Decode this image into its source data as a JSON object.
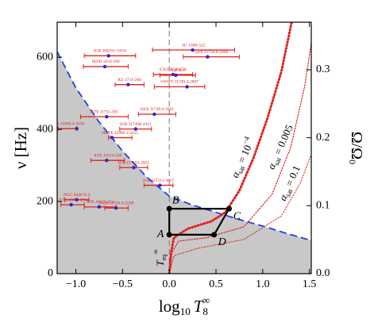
{
  "chart_data": {
    "type": "scatter",
    "x_label": {
      "base": "log",
      "base_sub": "10",
      "var": "T",
      "var_sub": "8",
      "var_sup": "∞"
    },
    "y_label": "ν [Hz]",
    "y2_label": {
      "main": "Ω/Ω",
      "sub": "0"
    },
    "xlim": [
      -1.2,
      1.52
    ],
    "ylim": [
      0,
      697
    ],
    "y2lim": [
      0,
      0.37
    ],
    "xticks": [
      {
        "value": -1,
        "label": "−1.0"
      },
      {
        "value": -0.5,
        "label": "−0.5"
      },
      {
        "value": 0,
        "label": "0.0"
      },
      0.5,
      {
        "value": 1,
        "label": "1.0"
      },
      1.5
    ],
    "yticks": [
      0,
      200,
      400,
      600
    ],
    "y2ticks": [
      {
        "value": 0,
        "label": "0.0"
      },
      0.1,
      0.2,
      0.3
    ],
    "source_color": "#e0201b",
    "point_color": "#1f2bd6",
    "sources": [
      {
        "name": "4U 1608-522",
        "x": 0.25,
        "xlo": -0.18,
        "xhi": 0.7,
        "y": 620
      },
      {
        "name": "IGR J00291+5934",
        "x": -0.65,
        "xlo": -0.91,
        "xhi": -0.36,
        "y": 604
      },
      {
        "name": "MXB 1659-298",
        "x": -0.69,
        "xlo": -0.92,
        "xhi": -0.44,
        "y": 574
      },
      {
        "name": "SAX J1750.8-2900",
        "x": 0.41,
        "xlo": 0.15,
        "xhi": 0.75,
        "y": 601
      },
      {
        "name": "EXO 0748-676",
        "x": 0.04,
        "xlo": -0.17,
        "xhi": 0.25,
        "y": 552
      },
      {
        "name": "KS 1731-260",
        "x": -0.44,
        "xlo": -0.58,
        "xhi": -0.27,
        "y": 524
      },
      {
        "name": "Aql X-1",
        "x": 0.07,
        "xlo": -0.1,
        "xhi": 0.28,
        "y": 550
      },
      {
        "name": "SWIFT J1749.4-2807",
        "x": 0.19,
        "xlo": -0.16,
        "xhi": 0.38,
        "y": 518
      },
      {
        "name": "XTE J1751-305",
        "x": -0.67,
        "xlo": -0.95,
        "xhi": -0.44,
        "y": 435
      },
      {
        "name": "SAX J1748.9-2021",
        "x": -0.16,
        "xlo": -0.33,
        "xhi": 0.07,
        "y": 442
      },
      {
        "name": "SAX J1808.4-3658",
        "x": -0.99,
        "xlo": -1.19,
        "xhi": -0.99,
        "y": 402
      },
      {
        "name": "IGR J17498-2921",
        "x": -0.36,
        "xlo": -0.53,
        "xhi": -0.19,
        "y": 401
      },
      {
        "name": "HETE J1900.1-2455",
        "x": -0.61,
        "xlo": -0.65,
        "xhi": -0.4,
        "y": 377
      },
      {
        "name": "XTE J1814-338",
        "x": -0.67,
        "xlo": -0.84,
        "xhi": -0.48,
        "y": 314
      },
      {
        "name": "IGR J17191-2821",
        "x": -0.38,
        "xlo": -0.53,
        "xhi": -0.23,
        "y": 294
      },
      {
        "name": "IGR J17511-3057",
        "x": -0.1,
        "xlo": -0.27,
        "xhi": 0.04,
        "y": 245
      },
      {
        "name": "NGC 6440 X-2",
        "x": -0.99,
        "xlo": -1.12,
        "xhi": -0.86,
        "y": 205
      },
      {
        "name": "XTE J1807-294",
        "x": -1.05,
        "xlo": -1.16,
        "xhi": -0.91,
        "y": 191
      },
      {
        "name": "XTE J0929-314",
        "x": -0.75,
        "xlo": -0.91,
        "xhi": -0.57,
        "y": 185
      },
      {
        "name": "Swift J1756.9-2508",
        "x": -0.57,
        "xlo": -0.69,
        "xhi": -0.44,
        "y": 182
      }
    ],
    "boundary": {
      "color": "#2040e0",
      "fill": "#c8c8c8",
      "x": [
        -1.2,
        -1.0,
        -0.75,
        -0.5,
        -0.25,
        0,
        0.25,
        0.5,
        0.75,
        1.0,
        1.25,
        1.52
      ],
      "y": [
        615,
        515,
        420,
        340,
        270,
        215,
        190,
        170,
        150,
        132,
        112,
        92
      ]
    },
    "equilibrium_line_x": 0,
    "equilibrium_label": {
      "main": "T",
      "sub": "eq",
      "sup": "∞"
    },
    "curves": [
      {
        "label": {
          "main": "α",
          "sub": "sat",
          "rest": " = 10",
          "sup": "−4"
        },
        "width": 3,
        "x": [
          0.0,
          0.02,
          0.05,
          0.2,
          0.45,
          0.6,
          0.75,
          0.9,
          1.05,
          1.2,
          1.31
        ],
        "y": [
          0,
          60,
          100,
          125,
          145,
          170,
          230,
          320,
          430,
          560,
          697
        ]
      },
      {
        "label": {
          "main": "α",
          "sub": "sat",
          "rest": " = 0.005"
        },
        "width": 1.2,
        "x": [
          0.0,
          0.03,
          0.1,
          0.4,
          0.8,
          1.1,
          1.3,
          1.45,
          1.52
        ],
        "y": [
          0,
          60,
          90,
          100,
          130,
          220,
          350,
          520,
          640
        ]
      },
      {
        "label": {
          "main": "α",
          "sub": "sat",
          "rest": " = 0.1"
        },
        "width": 1,
        "x": [
          0.0,
          0.05,
          0.3,
          0.8,
          1.2,
          1.4,
          1.52
        ],
        "y": [
          0,
          50,
          70,
          95,
          160,
          250,
          330
        ]
      }
    ],
    "curve_color": "#e0201b",
    "cycle": {
      "labels": [
        "A",
        "B",
        "C",
        "D"
      ],
      "x": [
        0,
        0,
        0.64,
        0.48
      ],
      "y": [
        108,
        180,
        180,
        108
      ]
    }
  }
}
